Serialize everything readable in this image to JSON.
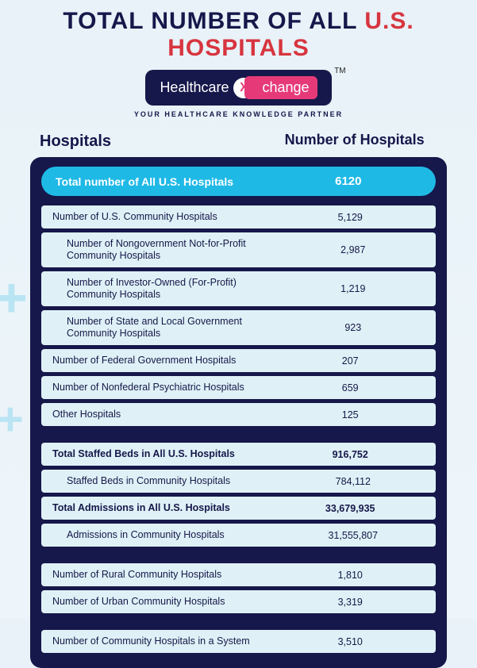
{
  "title_html": "<span style='color:#16174a'>TOTAL NUMBER OF ALL </span><span style='color:#d7353f'>U.S. HOSPITALS</span>",
  "logo": {
    "left": "Healthcare",
    "x": "X",
    "right": "change",
    "tm": "TM"
  },
  "tagline": "YOUR HEALTHCARE KNOWLEDGE PARTNER",
  "col1": "Hospitals",
  "col2": "Number of Hospitals",
  "header": {
    "label": "Total number of All U.S. Hospitals",
    "value": "6120"
  },
  "rows": [
    {
      "label": "Number of U.S. Community Hospitals",
      "value": "5,129",
      "indent": false,
      "bold": false
    },
    {
      "label": "Number of Nongovernment Not-for-Profit Community Hospitals",
      "value": "2,987",
      "indent": true,
      "bold": false
    },
    {
      "label": "Number of Investor-Owned (For-Profit) Community Hospitals",
      "value": "1,219",
      "indent": true,
      "bold": false
    },
    {
      "label": "Number of State and Local Government Community Hospitals",
      "value": "923",
      "indent": true,
      "bold": false
    },
    {
      "label": "Number of Federal Government Hospitals",
      "value": "207",
      "indent": false,
      "bold": false
    },
    {
      "label": "Number of Nonfederal Psychiatric Hospitals",
      "value": "659",
      "indent": false,
      "bold": false
    },
    {
      "label": "Other Hospitals",
      "value": "125",
      "indent": false,
      "bold": false
    },
    {
      "gap": true
    },
    {
      "label": "Total Staffed Beds in All U.S. Hospitals",
      "value": "916,752",
      "indent": false,
      "bold": true
    },
    {
      "label": "Staffed Beds in Community Hospitals",
      "value": "784,112",
      "indent": true,
      "bold": false
    },
    {
      "label": "Total Admissions in All U.S. Hospitals",
      "value": "33,679,935",
      "indent": false,
      "bold": true
    },
    {
      "label": "Admissions in Community Hospitals",
      "value": "31,555,807",
      "indent": true,
      "bold": false
    },
    {
      "gap": true
    },
    {
      "label": "Number of Rural Community Hospitals",
      "value": "1,810",
      "indent": false,
      "bold": false
    },
    {
      "label": "Number of Urban Community Hospitals",
      "value": "3,319",
      "indent": false,
      "bold": false
    },
    {
      "gap": true
    },
    {
      "label": "Number of Community Hospitals in a System",
      "value": "3,510",
      "indent": false,
      "bold": false
    }
  ],
  "colors": {
    "navy": "#16174a",
    "cyan": "#1fb9e6",
    "row_bg": "#dff1f6",
    "red": "#d7353f",
    "pink": "#e63a78"
  }
}
